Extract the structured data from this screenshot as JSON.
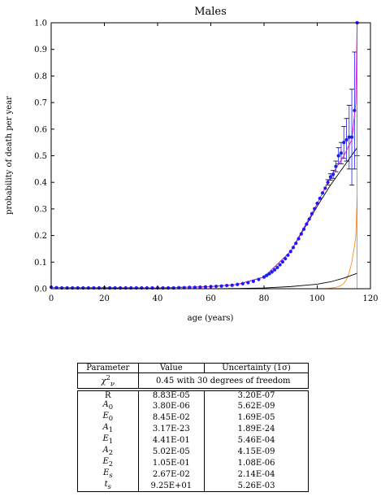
{
  "chart_data": {
    "type": "line",
    "title": "Males",
    "xlabel": "age (years)",
    "ylabel": "probability of death per year",
    "xlim": [
      0,
      120
    ],
    "ylim": [
      0,
      1.0
    ],
    "xticks": [
      0,
      20,
      40,
      60,
      80,
      100,
      120
    ],
    "yticks": [
      0.0,
      0.1,
      0.2,
      0.3,
      0.4,
      0.5,
      0.6,
      0.7,
      0.8,
      0.9,
      1.0
    ],
    "grid": false,
    "legend": "none",
    "series": [
      {
        "kind": "points-with-errorbars",
        "color": "#1a1aff",
        "points": [
          [
            0,
            0.006
          ],
          [
            2,
            0.004
          ],
          [
            4,
            0.003
          ],
          [
            6,
            0.003
          ],
          [
            8,
            0.003
          ],
          [
            10,
            0.003
          ],
          [
            12,
            0.003
          ],
          [
            14,
            0.003
          ],
          [
            16,
            0.003
          ],
          [
            18,
            0.003
          ],
          [
            20,
            0.003
          ],
          [
            22,
            0.003
          ],
          [
            24,
            0.003
          ],
          [
            26,
            0.003
          ],
          [
            28,
            0.003
          ],
          [
            30,
            0.003
          ],
          [
            32,
            0.003
          ],
          [
            34,
            0.003
          ],
          [
            36,
            0.003
          ],
          [
            38,
            0.003
          ],
          [
            40,
            0.003
          ],
          [
            42,
            0.003
          ],
          [
            44,
            0.003
          ],
          [
            46,
            0.003
          ],
          [
            48,
            0.004
          ],
          [
            50,
            0.004
          ],
          [
            52,
            0.005
          ],
          [
            54,
            0.005
          ],
          [
            56,
            0.006
          ],
          [
            58,
            0.007
          ],
          [
            60,
            0.008
          ],
          [
            62,
            0.009
          ],
          [
            64,
            0.01
          ],
          [
            66,
            0.012
          ],
          [
            68,
            0.013
          ],
          [
            70,
            0.016
          ],
          [
            72,
            0.019
          ],
          [
            74,
            0.023
          ],
          [
            76,
            0.028
          ],
          [
            78,
            0.035
          ],
          [
            80,
            0.044
          ],
          [
            81,
            0.05
          ],
          [
            82,
            0.056
          ],
          [
            83,
            0.063
          ],
          [
            84,
            0.071
          ],
          [
            85,
            0.08
          ],
          [
            86,
            0.09
          ],
          [
            87,
            0.101
          ],
          [
            88,
            0.113
          ],
          [
            89,
            0.126
          ],
          [
            90,
            0.14
          ],
          [
            91,
            0.155
          ],
          [
            92,
            0.171
          ],
          [
            93,
            0.188
          ],
          [
            94,
            0.206
          ],
          [
            95,
            0.224
          ],
          [
            96,
            0.243
          ],
          [
            97,
            0.262
          ],
          [
            98,
            0.282
          ],
          [
            99,
            0.301
          ],
          [
            100,
            0.321
          ],
          [
            101,
            0.34
          ],
          [
            102,
            0.36
          ],
          [
            103,
            0.378
          ],
          [
            104,
            0.4
          ],
          [
            105,
            0.42
          ],
          [
            106,
            0.43
          ],
          [
            107,
            0.46
          ],
          [
            108,
            0.5
          ],
          [
            109,
            0.51
          ],
          [
            110,
            0.55
          ],
          [
            111,
            0.56
          ],
          [
            112,
            0.57
          ],
          [
            113,
            0.57
          ],
          [
            114,
            0.67
          ],
          [
            115,
            1.0
          ]
        ],
        "errorbars": [
          [
            104,
            0.4,
            0.01
          ],
          [
            105,
            0.42,
            0.012
          ],
          [
            106,
            0.43,
            0.015
          ],
          [
            107,
            0.46,
            0.02
          ],
          [
            108,
            0.5,
            0.03
          ],
          [
            109,
            0.51,
            0.04
          ],
          [
            110,
            0.55,
            0.06
          ],
          [
            111,
            0.56,
            0.08
          ],
          [
            112,
            0.57,
            0.12
          ],
          [
            113,
            0.57,
            0.18
          ],
          [
            114,
            0.67,
            0.22
          ],
          [
            115,
            1.0,
            0.5
          ]
        ]
      },
      {
        "kind": "fit-total",
        "color": "#e01ad4",
        "points": [
          [
            0,
            0.005
          ],
          [
            40,
            0.003
          ],
          [
            60,
            0.008
          ],
          [
            70,
            0.016
          ],
          [
            80,
            0.044
          ],
          [
            90,
            0.14
          ],
          [
            100,
            0.32
          ],
          [
            105,
            0.42
          ],
          [
            110,
            0.5
          ],
          [
            113,
            0.56
          ],
          [
            114.5,
            0.7
          ],
          [
            115,
            1.0
          ]
        ]
      },
      {
        "kind": "component-aging",
        "color": "#000000",
        "points": [
          [
            0,
            0.0
          ],
          [
            40,
            0.003
          ],
          [
            60,
            0.008
          ],
          [
            70,
            0.016
          ],
          [
            80,
            0.044
          ],
          [
            90,
            0.14
          ],
          [
            100,
            0.31
          ],
          [
            105,
            0.39
          ],
          [
            110,
            0.46
          ],
          [
            115,
            0.53
          ]
        ]
      },
      {
        "kind": "component-late",
        "color": "#ff8c1a",
        "points": [
          [
            0,
            0.0
          ],
          [
            100,
            0.0
          ],
          [
            104,
            0.001
          ],
          [
            107,
            0.005
          ],
          [
            109,
            0.012
          ],
          [
            110,
            0.02
          ],
          [
            111,
            0.035
          ],
          [
            112,
            0.06
          ],
          [
            113,
            0.1
          ],
          [
            114,
            0.16
          ],
          [
            114.5,
            0.2
          ],
          [
            115,
            0.34
          ]
        ]
      },
      {
        "kind": "component-low",
        "color": "#000000",
        "points": [
          [
            0,
            0.0
          ],
          [
            60,
            0.0
          ],
          [
            70,
            0.001
          ],
          [
            80,
            0.003
          ],
          [
            90,
            0.008
          ],
          [
            100,
            0.017
          ],
          [
            105,
            0.026
          ],
          [
            110,
            0.04
          ],
          [
            115,
            0.058
          ]
        ]
      }
    ]
  },
  "table": {
    "headers": [
      "Parameter",
      "Value",
      "Uncertainty (1σ)"
    ],
    "chi_label": "χ",
    "chi_sup": "2",
    "chi_sub": "ν",
    "chi_value": "0.45 with 30 degrees of freedom",
    "rows": [
      {
        "p": "R",
        "sub": "",
        "value": "8.83E-05",
        "unc": "3.20E-07"
      },
      {
        "p": "A",
        "sub": "0",
        "value": "3.80E-06",
        "unc": "5.62E-09"
      },
      {
        "p": "E",
        "sub": "0",
        "value": "8.45E-02",
        "unc": "1.69E-05"
      },
      {
        "p": "A",
        "sub": "1",
        "value": "3.17E-23",
        "unc": "1.89E-24"
      },
      {
        "p": "E",
        "sub": "1",
        "value": "4.41E-01",
        "unc": "5.46E-04"
      },
      {
        "p": "A",
        "sub": "2",
        "value": "5.02E-05",
        "unc": "4.15E-09"
      },
      {
        "p": "E",
        "sub": "2",
        "value": "1.05E-01",
        "unc": "1.08E-06"
      },
      {
        "p": "E",
        "sub": "s",
        "value": "2.67E-02",
        "unc": "2.14E-04"
      },
      {
        "p": "t",
        "sub": "s",
        "value": "9.25E+01",
        "unc": "5.26E-03"
      }
    ]
  }
}
